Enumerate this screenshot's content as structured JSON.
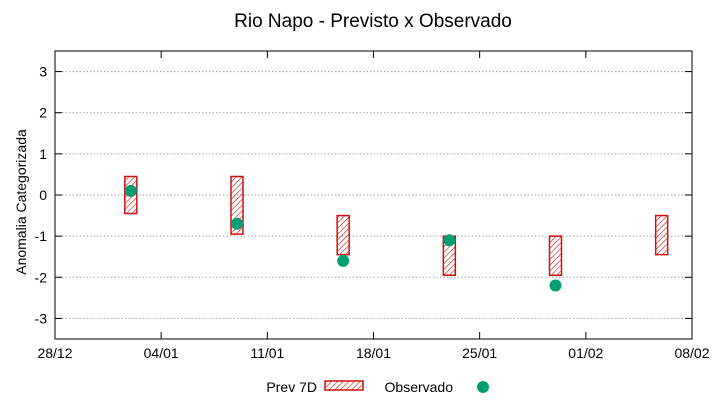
{
  "chart_data": {
    "type": "range-and-scatter",
    "title": "Rio Napo - Previsto x Observado",
    "xlabel": "",
    "ylabel": "Anomalia Categorizada",
    "xlim": [
      0,
      42
    ],
    "ylim": [
      -3.5,
      3.5
    ],
    "grid": true,
    "x_ticks": [
      {
        "pos": 0,
        "label": "28/12"
      },
      {
        "pos": 7,
        "label": "04/01"
      },
      {
        "pos": 14,
        "label": "11/01"
      },
      {
        "pos": 21,
        "label": "18/01"
      },
      {
        "pos": 28,
        "label": "25/01"
      },
      {
        "pos": 35,
        "label": "01/02"
      },
      {
        "pos": 42,
        "label": "08/02"
      }
    ],
    "y_ticks": [
      {
        "value": 3,
        "label": "3"
      },
      {
        "value": 2,
        "label": "2"
      },
      {
        "value": 1,
        "label": "1"
      },
      {
        "value": 0,
        "label": "0"
      },
      {
        "value": -1,
        "label": "-1"
      },
      {
        "value": -2,
        "label": "-2"
      },
      {
        "value": -3,
        "label": "-3"
      }
    ],
    "series": [
      {
        "name": "Prev 7D",
        "kind": "range-box",
        "color": "#cc1111",
        "points": [
          {
            "x": 5,
            "low": -0.45,
            "high": 0.45
          },
          {
            "x": 12,
            "low": -0.95,
            "high": 0.45
          },
          {
            "x": 19,
            "low": -1.45,
            "high": -0.5
          },
          {
            "x": 26,
            "low": -1.95,
            "high": -1.0
          },
          {
            "x": 33,
            "low": -1.95,
            "high": -1.0
          },
          {
            "x": 40,
            "low": -1.45,
            "high": -0.5
          }
        ]
      },
      {
        "name": "Observado",
        "kind": "scatter",
        "color": "#009e73",
        "points": [
          {
            "x": 5,
            "y": 0.1
          },
          {
            "x": 12,
            "y": -0.7
          },
          {
            "x": 19,
            "y": -1.6
          },
          {
            "x": 26,
            "y": -1.1
          },
          {
            "x": 33,
            "y": -2.2
          }
        ]
      }
    ],
    "legend": {
      "placement": "bottom-center"
    }
  }
}
